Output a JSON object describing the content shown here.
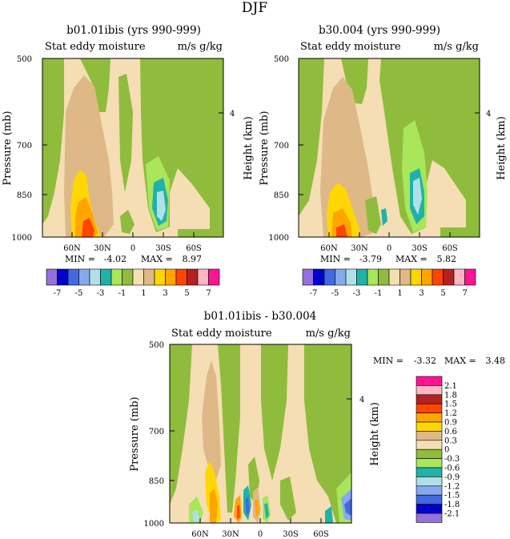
{
  "page_title": "DJF",
  "colors": {
    "c_n7": "#9370db",
    "c_n6": "#0000cd",
    "c_n5": "#4169e1",
    "c_n4": "#87a8ee",
    "c_n3": "#b0e0e6",
    "c_n2": "#20b2aa",
    "c_n1": "#a8e65a",
    "c_0": "#8fbc3c",
    "c_p0": "#f5deb3",
    "c_p1": "#deb887",
    "c_p2": "#ffd700",
    "c_p3": "#ffa500",
    "c_p4": "#ff4500",
    "c_p5": "#b22222",
    "c_p6": "#ffb6c1",
    "c_p7": "#ff1493"
  },
  "chart_data": [
    {
      "id": "left",
      "type": "heatmap",
      "title": "b01.01ibis (yrs 990-999)",
      "subtitle_left": "Stat eddy moisture",
      "subtitle_right": "m/s g/kg",
      "ylabel": "Pressure (mb)",
      "y2label": "Height (km)",
      "y_ticks": [
        "500",
        "700",
        "850",
        "1000"
      ],
      "y2_ticks": [
        "4"
      ],
      "x_ticks": [
        "60N",
        "30N",
        "0",
        "30S",
        "60S"
      ],
      "stats": {
        "min_label": "MIN =",
        "min": "-4.02",
        "max_label": "MAX =",
        "max": "8.97"
      },
      "colorbar_labels": [
        "-7",
        "-5",
        "-3",
        "-1",
        "1",
        "3",
        "5",
        "7"
      ]
    },
    {
      "id": "right",
      "type": "heatmap",
      "title": "b30.004 (yrs 990-999)",
      "subtitle_left": "Stat eddy moisture",
      "subtitle_right": "m/s g/kg",
      "ylabel": "Pressure (mb)",
      "y2label": "Height (km)",
      "y_ticks": [
        "500",
        "700",
        "850",
        "1000"
      ],
      "y2_ticks": [
        "4"
      ],
      "x_ticks": [
        "60N",
        "30N",
        "0",
        "30S",
        "60S"
      ],
      "stats": {
        "min_label": "MIN =",
        "min": "-3.79",
        "max_label": "MAX =",
        "max": "5.82"
      },
      "colorbar_labels": [
        "-7",
        "-5",
        "-3",
        "-1",
        "1",
        "3",
        "5",
        "7"
      ]
    },
    {
      "id": "bottom",
      "type": "heatmap",
      "title": "b01.01ibis - b30.004",
      "subtitle_left": "Stat eddy moisture",
      "subtitle_right": "m/s g/kg",
      "ylabel": "Pressure (mb)",
      "y2label": "Height (km)",
      "y_ticks": [
        "500",
        "700",
        "850",
        "1000"
      ],
      "y2_ticks": [
        "4"
      ],
      "x_ticks": [
        "60N",
        "30N",
        "0",
        "30S",
        "60S"
      ],
      "stats": {
        "min_label": "MIN =",
        "min": "-3.32",
        "max_label": "MAX =",
        "max": "3.48"
      },
      "colorbar_labels": [
        "2.1",
        "1.8",
        "1.5",
        "1.2",
        "0.9",
        "0.6",
        "0.3",
        "0",
        "-0.3",
        "-0.6",
        "-0.9",
        "-1.2",
        "-1.5",
        "-1.8",
        "-2.1"
      ]
    }
  ]
}
